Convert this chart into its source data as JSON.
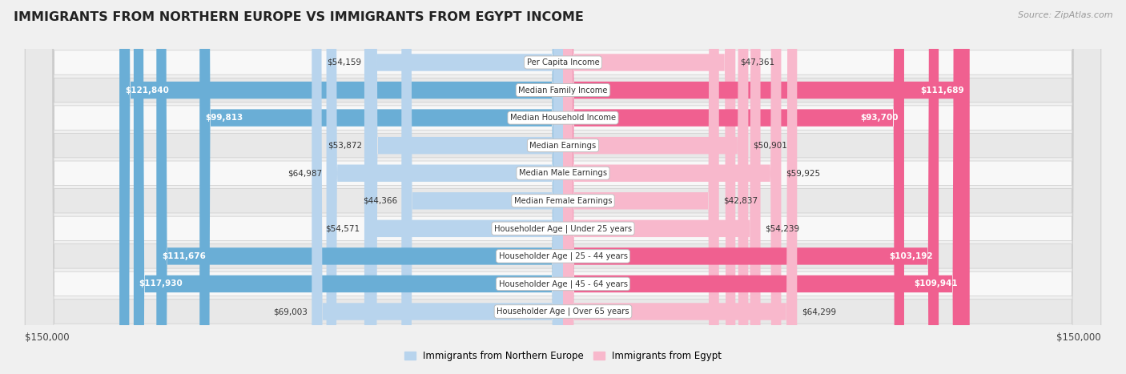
{
  "title": "IMMIGRANTS FROM NORTHERN EUROPE VS IMMIGRANTS FROM EGYPT INCOME",
  "source": "Source: ZipAtlas.com",
  "categories": [
    "Per Capita Income",
    "Median Family Income",
    "Median Household Income",
    "Median Earnings",
    "Median Male Earnings",
    "Median Female Earnings",
    "Householder Age | Under 25 years",
    "Householder Age | 25 - 44 years",
    "Householder Age | 45 - 64 years",
    "Householder Age | Over 65 years"
  ],
  "left_values": [
    54159,
    121840,
    99813,
    53872,
    64987,
    44366,
    54571,
    111676,
    117930,
    69003
  ],
  "right_values": [
    47361,
    111689,
    93700,
    50901,
    59925,
    42837,
    54239,
    103192,
    109941,
    64299
  ],
  "left_labels": [
    "$54,159",
    "$121,840",
    "$99,813",
    "$53,872",
    "$64,987",
    "$44,366",
    "$54,571",
    "$111,676",
    "$117,930",
    "$69,003"
  ],
  "right_labels": [
    "$47,361",
    "$111,689",
    "$93,700",
    "$50,901",
    "$59,925",
    "$42,837",
    "$54,239",
    "$103,192",
    "$109,941",
    "$64,299"
  ],
  "max_value": 150000,
  "left_color_light": "#b8d4ed",
  "left_color_dark": "#6aaed6",
  "right_color_light": "#f8b8cc",
  "right_color_dark": "#f06090",
  "dark_threshold": 80000,
  "legend_left": "Immigrants from Northern Europe",
  "legend_right": "Immigrants from Egypt",
  "bg_color": "#f0f0f0",
  "row_bg_even": "#f8f8f8",
  "row_bg_odd": "#e8e8e8",
  "xlabel_left": "$150,000",
  "xlabel_right": "$150,000",
  "label_inside_threshold": 75000
}
